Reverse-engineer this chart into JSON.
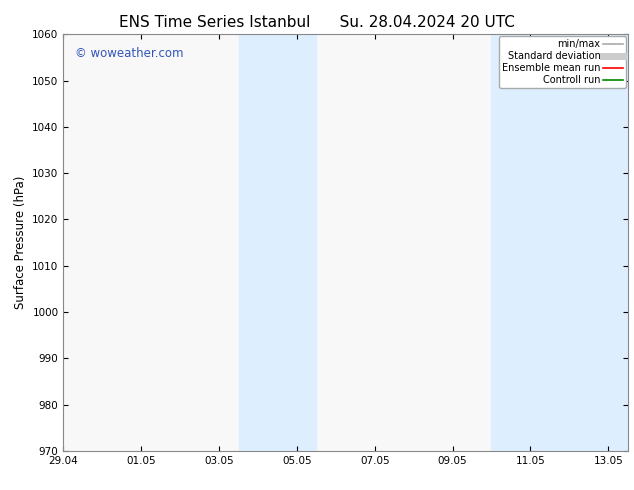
{
  "title_left": "ENS Time Series Istanbul",
  "title_right": "Su. 28.04.2024 20 UTC",
  "ylabel": "Surface Pressure (hPa)",
  "ylim": [
    970,
    1060
  ],
  "yticks": [
    970,
    980,
    990,
    1000,
    1010,
    1020,
    1030,
    1040,
    1050,
    1060
  ],
  "xlim_start": 0,
  "xlim_end": 14.5,
  "xtick_labels": [
    "29.04",
    "01.05",
    "03.05",
    "05.05",
    "07.05",
    "09.05",
    "11.05",
    "13.05"
  ],
  "xtick_positions": [
    0,
    2,
    4,
    6,
    8,
    10,
    12,
    14
  ],
  "shaded_bands": [
    {
      "x_start": 4.5,
      "x_end": 6.5
    },
    {
      "x_start": 11.0,
      "x_end": 14.5
    }
  ],
  "shade_color": "#ddeeff",
  "watermark_text": "© woweather.com",
  "watermark_color": "#3355bb",
  "legend_items": [
    {
      "label": "min/max",
      "color": "#aaaaaa",
      "lw": 1.2
    },
    {
      "label": "Standard deviation",
      "color": "#cccccc",
      "lw": 5
    },
    {
      "label": "Ensemble mean run",
      "color": "#ff0000",
      "lw": 1.2
    },
    {
      "label": "Controll run",
      "color": "#008800",
      "lw": 1.2
    }
  ],
  "bg_color": "#ffffff",
  "plot_bg_color": "#f8f8f8",
  "spine_color": "#888888",
  "title_fontsize": 11,
  "label_fontsize": 8.5,
  "tick_fontsize": 7.5,
  "legend_fontsize": 7,
  "watermark_fontsize": 8.5
}
